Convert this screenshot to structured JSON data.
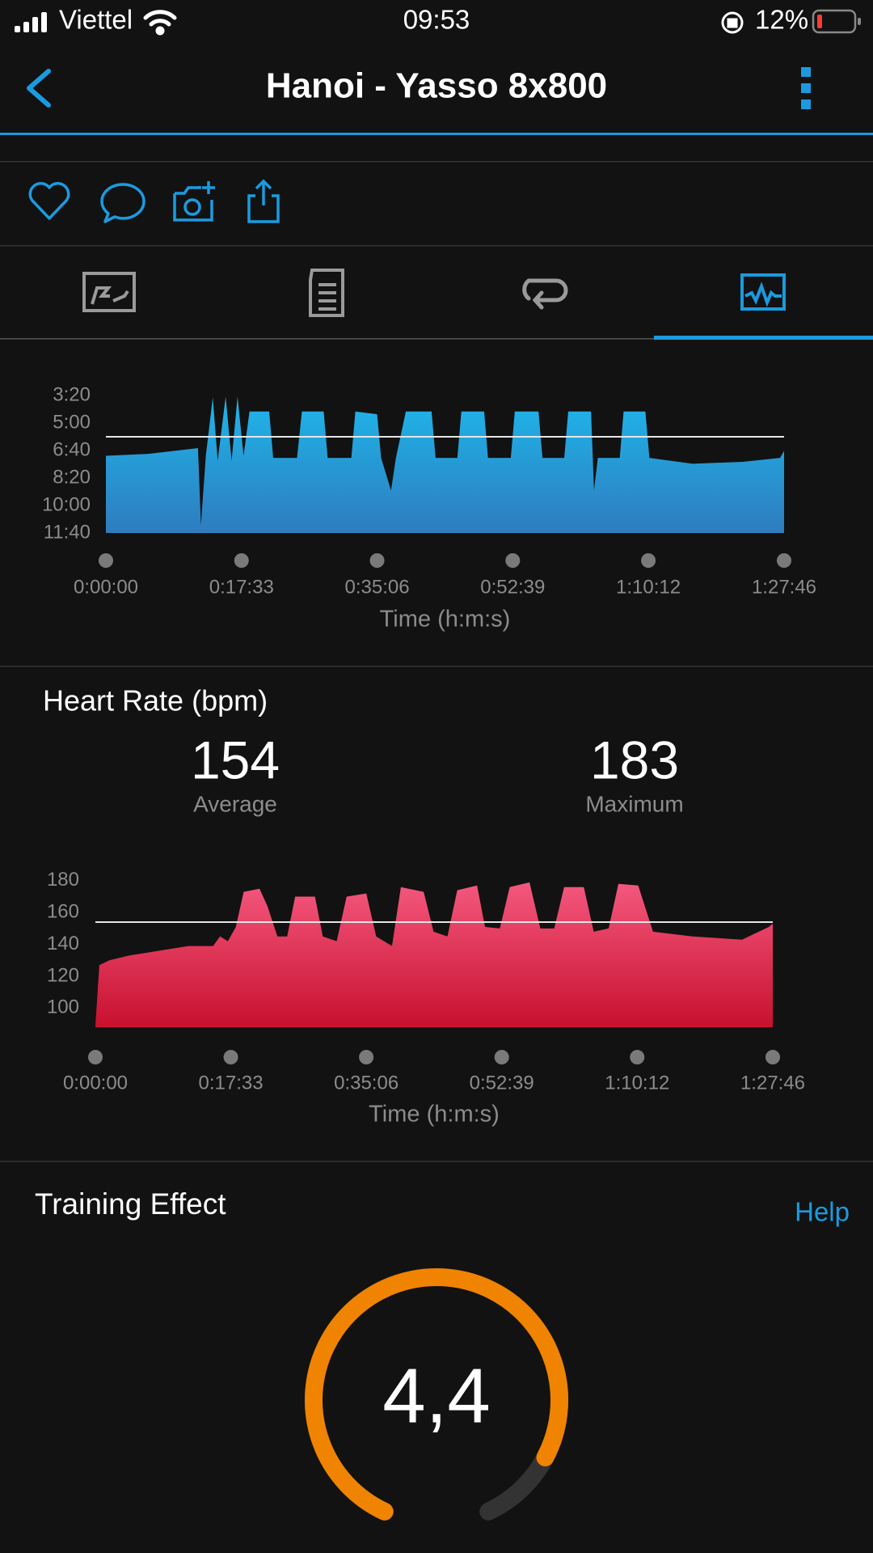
{
  "status_bar": {
    "carrier": "Viettel",
    "time": "09:53",
    "battery": "12%"
  },
  "header": {
    "title": "Hanoi - Yasso 8x800"
  },
  "pace_chart": {
    "type": "area",
    "colors": [
      "#1fb6ea",
      "#2e7cbf"
    ],
    "x": [
      0,
      330,
      715,
      738,
      776,
      830,
      868,
      930,
      976,
      1022,
      1069,
      1115,
      1268,
      1299,
      1484,
      1522,
      1691,
      1722,
      1906,
      1937,
      2106,
      2137,
      2214,
      2252,
      2329,
      2529,
      2560,
      2729,
      2760,
      2937,
      2967,
      3144,
      3175,
      3359,
      3390,
      3559,
      3590,
      3767,
      3790,
      3820,
      3990,
      4020,
      4189,
      4220,
      4558,
      4943,
      5235,
      5266
    ],
    "values": [
      419,
      412,
      391,
      671,
      419,
      207,
      437,
      204,
      437,
      204,
      419,
      258,
      258,
      427,
      427,
      258,
      258,
      427,
      427,
      258,
      268,
      427,
      545,
      427,
      258,
      258,
      427,
      427,
      258,
      258,
      427,
      427,
      258,
      258,
      427,
      427,
      258,
      258,
      545,
      427,
      427,
      258,
      258,
      427,
      448,
      441,
      427,
      401
    ],
    "reference_line": 350,
    "xlim": [
      0,
      5266
    ],
    "xticks": [
      {
        "value": 0,
        "label": "0:00:00"
      },
      {
        "value": 1053,
        "label": "0:17:33"
      },
      {
        "value": 2106,
        "label": "0:35:06"
      },
      {
        "value": 3159,
        "label": "0:52:39"
      },
      {
        "value": 4212,
        "label": "1:10:12"
      },
      {
        "value": 5266,
        "label": "1:27:46"
      }
    ],
    "ylim": [
      200,
      700
    ],
    "inverted": true,
    "yticks": [
      {
        "value": 200,
        "label": "3:20"
      },
      {
        "value": 300,
        "label": "5:00"
      },
      {
        "value": 400,
        "label": "6:40"
      },
      {
        "value": 500,
        "label": "8:20"
      },
      {
        "value": 600,
        "label": "10:00"
      },
      {
        "value": 700,
        "label": "11:40"
      }
    ],
    "x_label": "Time (h:m:s)"
  },
  "heart_rate": {
    "title": "Heart Rate (bpm)",
    "average": {
      "value": 154,
      "label": "Average"
    },
    "maximum": {
      "value": 183,
      "label": "Maximum"
    },
    "chart": {
      "type": "area",
      "colors": [
        "#f4587e",
        "#c8102e"
      ],
      "x": [
        0,
        31,
        108,
        261,
        492,
        723,
        915,
        969,
        1030,
        1092,
        1153,
        1276,
        1338,
        1415,
        1491,
        1553,
        1707,
        1768,
        1876,
        1953,
        2106,
        2183,
        2306,
        2375,
        2552,
        2629,
        2737,
        2813,
        2967,
        3029,
        3144,
        3221,
        3375,
        3459,
        3567,
        3644,
        3797,
        3874,
        3990,
        4066,
        4220,
        4335,
        4643,
        5027,
        5235,
        5266
      ],
      "values": [
        89,
        127,
        130,
        133,
        136,
        139,
        139,
        145,
        142,
        151,
        173,
        175,
        164,
        145,
        145,
        170,
        170,
        145,
        142,
        170,
        172,
        145,
        139,
        176,
        173,
        148,
        145,
        174,
        177,
        151,
        150,
        176,
        179,
        150,
        150,
        176,
        176,
        148,
        150,
        178,
        177,
        148,
        145,
        143,
        151,
        153
      ],
      "xlim": [
        0,
        5266
      ],
      "xticks": [
        {
          "value": 0,
          "label": "0:00:00"
        },
        {
          "value": 1053,
          "label": "0:17:33"
        },
        {
          "value": 2106,
          "label": "0:35:06"
        },
        {
          "value": 3159,
          "label": "0:52:39"
        },
        {
          "value": 4212,
          "label": "1:10:12"
        },
        {
          "value": 5266,
          "label": "1:27:46"
        }
      ],
      "ylim": [
        88,
        185
      ],
      "inverted": false,
      "yticks": [
        100,
        120,
        140,
        160,
        180
      ],
      "x_label": "Time (h:m:s)"
    }
  },
  "training_effect": {
    "title": "Training Effect",
    "help": "Help",
    "value": 4.4,
    "value_label": "4,4",
    "scale": [
      0,
      5
    ],
    "color": "#f08300"
  }
}
